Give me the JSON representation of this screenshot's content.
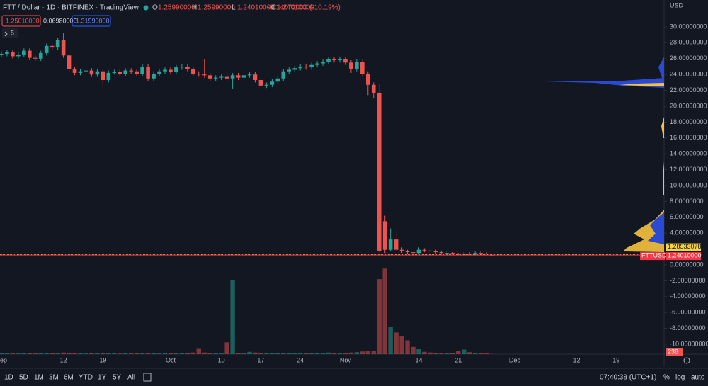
{
  "ui": {
    "title": "FTT / Dollar · 1D · BITFINEX · TradingView",
    "ohlc": [
      {
        "key": "O",
        "value": "1.25990000"
      },
      {
        "key": "H",
        "value": "1.25990000"
      },
      {
        "key": "L",
        "value": "1.24010000"
      },
      {
        "key": "C",
        "value": "1.24010000"
      }
    ],
    "change": "-0.14070000 (-10.19%)",
    "boxes": [
      "1.25010000",
      "0.06980000",
      "1.31990000"
    ],
    "indicator": "5",
    "currency": "USD",
    "ranges": [
      "1D",
      "5D",
      "1M",
      "3M",
      "6M",
      "YTD",
      "1Y",
      "5Y",
      "All"
    ],
    "clock": "07:40:38 (UTC+1)",
    "options": [
      "%",
      "log",
      "auto"
    ]
  },
  "chart_data": {
    "type": "candlestick",
    "up_color": "#26a69a",
    "down_color": "#ef5350",
    "grid": false,
    "categories": [
      "Sep",
      null,
      null,
      null,
      null,
      null,
      null,
      null,
      null,
      null,
      null,
      "12",
      null,
      null,
      null,
      null,
      null,
      null,
      "19",
      null,
      null,
      null,
      null,
      null,
      null,
      null,
      null,
      null,
      null,
      null,
      "Oct",
      null,
      null,
      null,
      null,
      null,
      null,
      null,
      null,
      "10",
      null,
      null,
      null,
      null,
      null,
      null,
      "17",
      null,
      null,
      null,
      null,
      null,
      null,
      "24",
      null,
      null,
      null,
      null,
      null,
      null,
      null,
      "Nov",
      null,
      null,
      null,
      null,
      null,
      null,
      null,
      null,
      null,
      null,
      null,
      null,
      "14",
      null,
      null,
      null,
      null,
      null,
      null,
      "21",
      null,
      null,
      null,
      null,
      null,
      null,
      null,
      null,
      null,
      "Dec",
      null,
      null,
      null,
      null,
      null,
      null,
      null,
      null,
      null,
      null,
      "12",
      null,
      null,
      null,
      null,
      null,
      null,
      "19",
      null,
      null,
      null,
      null,
      null,
      null,
      null,
      null
    ],
    "open": [
      26.5,
      26.6,
      26.8,
      26.3,
      26.5,
      27.0,
      26.1,
      26.0,
      26.7,
      27.6,
      27.4,
      28.3,
      26.4,
      24.7,
      24.2,
      24.4,
      24.5,
      24.0,
      24.4,
      23.3,
      24.2,
      24.3,
      24.1,
      24.5,
      24.4,
      24.1,
      25.0,
      23.5,
      24.1,
      24.4,
      24.6,
      24.3,
      24.9,
      25.0,
      24.7,
      24.1,
      24.0,
      23.9,
      23.5,
      23.6,
      23.7,
      23.5,
      23.9,
      23.6,
      23.9,
      24.0,
      23.3,
      22.6,
      22.7,
      23.1,
      23.5,
      24.4,
      24.6,
      24.8,
      25.0,
      24.9,
      25.2,
      25.4,
      25.6,
      25.9,
      25.8,
      25.9,
      25.5,
      24.7,
      25.6,
      24.1,
      22.7,
      21.7,
      5.5,
      1.9,
      3.2,
      1.9,
      1.7,
      1.6,
      1.5,
      1.9,
      1.8,
      1.7,
      1.6,
      1.5,
      1.5,
      1.4,
      1.3,
      1.4,
      1.3,
      1.5,
      1.4,
      1.2599,
      null,
      null,
      null,
      null,
      null,
      null,
      null,
      null,
      null,
      null,
      null,
      null,
      null,
      null,
      null,
      null,
      null,
      null,
      null,
      null,
      null,
      null,
      null,
      null,
      null,
      null,
      null,
      null,
      null,
      null
    ],
    "high": [
      26.9,
      27.1,
      27.1,
      26.8,
      27.3,
      27.3,
      26.4,
      27.0,
      27.9,
      27.9,
      28.6,
      29.2,
      26.6,
      25.0,
      24.7,
      24.8,
      24.8,
      24.7,
      24.7,
      24.5,
      24.6,
      24.6,
      24.8,
      24.8,
      24.7,
      25.3,
      25.3,
      24.4,
      24.7,
      24.9,
      24.9,
      25.2,
      25.3,
      25.3,
      25.0,
      24.4,
      25.9,
      24.2,
      23.9,
      24.0,
      24.0,
      24.2,
      24.2,
      24.2,
      24.3,
      24.3,
      23.6,
      23.0,
      23.4,
      23.8,
      24.7,
      24.9,
      25.1,
      25.3,
      25.3,
      25.5,
      25.7,
      25.9,
      26.2,
      26.2,
      26.2,
      26.2,
      25.8,
      25.9,
      25.9,
      24.4,
      23.0,
      22.8,
      6.2,
      4.6,
      4.3,
      2.2,
      1.9,
      1.8,
      2.2,
      2.1,
      2.0,
      1.9,
      1.8,
      1.7,
      1.6,
      1.5,
      1.6,
      1.6,
      1.7,
      1.7,
      1.6,
      1.2599,
      null,
      null,
      null,
      null,
      null,
      null,
      null,
      null,
      null,
      null,
      null,
      null,
      null,
      null,
      null,
      null,
      null,
      null,
      null,
      null,
      null,
      null,
      null,
      null,
      null,
      null,
      null,
      null,
      null,
      null
    ],
    "low": [
      26.2,
      26.3,
      26.0,
      26.0,
      26.2,
      25.8,
      25.7,
      25.7,
      26.4,
      27.1,
      27.1,
      26.1,
      24.4,
      23.9,
      23.9,
      24.1,
      23.7,
      23.7,
      22.6,
      23.0,
      24.0,
      23.8,
      23.8,
      24.1,
      23.8,
      23.8,
      23.2,
      23.2,
      23.8,
      24.1,
      24.0,
      24.0,
      24.6,
      24.4,
      23.8,
      23.7,
      23.6,
      23.2,
      23.2,
      23.3,
      23.2,
      22.2,
      23.3,
      23.3,
      23.6,
      23.0,
      22.3,
      22.3,
      22.4,
      22.8,
      23.2,
      24.1,
      24.3,
      24.5,
      24.6,
      24.6,
      24.9,
      25.1,
      25.3,
      25.5,
      25.5,
      25.2,
      24.2,
      24.4,
      23.8,
      21.4,
      21.0,
      1.5,
      1.5,
      1.7,
      1.7,
      1.5,
      1.4,
      1.3,
      1.4,
      1.6,
      1.5,
      1.4,
      1.3,
      1.3,
      1.2,
      1.2,
      1.2,
      1.2,
      1.2,
      1.3,
      1.3,
      1.2401,
      null,
      null,
      null,
      null,
      null,
      null,
      null,
      null,
      null,
      null,
      null,
      null,
      null,
      null,
      null,
      null,
      null,
      null,
      null,
      null,
      null,
      null,
      null,
      null,
      null,
      null,
      null,
      null,
      null,
      null
    ],
    "close": [
      26.6,
      26.8,
      26.3,
      26.5,
      27.0,
      26.1,
      26.0,
      26.7,
      27.6,
      27.4,
      28.3,
      26.4,
      24.7,
      24.2,
      24.4,
      24.5,
      24.0,
      24.4,
      23.3,
      24.2,
      24.3,
      24.1,
      24.5,
      24.4,
      24.1,
      25.0,
      23.5,
      24.1,
      24.4,
      24.6,
      24.3,
      24.9,
      25.0,
      24.7,
      24.1,
      24.0,
      23.9,
      23.5,
      23.6,
      23.7,
      23.5,
      23.9,
      23.6,
      23.9,
      24.0,
      23.3,
      22.6,
      22.7,
      23.1,
      23.5,
      24.4,
      24.6,
      24.8,
      25.0,
      24.9,
      25.2,
      25.4,
      25.6,
      25.9,
      25.8,
      25.9,
      25.5,
      24.7,
      25.6,
      24.1,
      22.7,
      21.7,
      1.7,
      1.9,
      3.2,
      1.9,
      1.7,
      1.6,
      1.5,
      1.9,
      1.8,
      1.7,
      1.6,
      1.5,
      1.5,
      1.4,
      1.3,
      1.4,
      1.3,
      1.5,
      1.4,
      1.38,
      1.2401,
      null,
      null,
      null,
      null,
      null,
      null,
      null,
      null,
      null,
      null,
      null,
      null,
      null,
      null,
      null,
      null,
      null,
      null,
      null,
      null,
      null,
      null,
      null,
      null,
      null,
      null,
      null,
      null,
      null,
      null
    ],
    "volume": [
      1500,
      1200,
      1000,
      900,
      1100,
      1300,
      1000,
      1200,
      1500,
      1400,
      2000,
      2500,
      1800,
      1500,
      1200,
      1000,
      1100,
      1300,
      1500,
      1200,
      1000,
      900,
      1100,
      1000,
      1200,
      1500,
      1400,
      1100,
      1000,
      1200,
      1300,
      1500,
      1400,
      1600,
      2500,
      8000,
      2500,
      1500,
      1300,
      2000,
      18000,
      112000,
      2000,
      1500,
      3500,
      2500,
      2000,
      1500,
      1300,
      2000,
      1500,
      1200,
      1300,
      1400,
      1200,
      1300,
      1400,
      1500,
      2500,
      2000,
      1800,
      1500,
      2500,
      3000,
      4000,
      4500,
      5000,
      114000,
      130000,
      42000,
      33000,
      27000,
      21000,
      11000,
      7500,
      3500,
      2500,
      2000,
      1500,
      1300,
      2000,
      5000,
      7000,
      3000,
      1500,
      1200,
      1000,
      238,
      null,
      null,
      null,
      null,
      null,
      null,
      null,
      null,
      null,
      null,
      null,
      null,
      null,
      null,
      null,
      null,
      null,
      null,
      null,
      null,
      null,
      null,
      null,
      null,
      null,
      null,
      null,
      null,
      null,
      null
    ],
    "vlim": [
      0,
      140000
    ],
    "ylim": [
      -11.25,
      33.39
    ],
    "yticks": [
      {
        "value": 30,
        "label": "30.00000000"
      },
      {
        "value": 28,
        "label": "28.00000000"
      },
      {
        "value": 26,
        "label": "26.00000000"
      },
      {
        "value": 24,
        "label": "24.00000000"
      },
      {
        "value": 22,
        "label": "22.00000000"
      },
      {
        "value": 20,
        "label": "20.00000000"
      },
      {
        "value": 18,
        "label": "18.00000000"
      },
      {
        "value": 16,
        "label": "16.00000000"
      },
      {
        "value": 14,
        "label": "14.00000000"
      },
      {
        "value": 12,
        "label": "12.00000000"
      },
      {
        "value": 10,
        "label": "10.00000000"
      },
      {
        "value": 8,
        "label": "8.00000000"
      },
      {
        "value": 6,
        "label": "6.00000000"
      },
      {
        "value": 4,
        "label": "4.00000000"
      },
      {
        "value": 0,
        "label": "0.00000000"
      },
      {
        "value": -2,
        "label": "-2.00000000"
      },
      {
        "value": -4,
        "label": "-4.00000000"
      },
      {
        "value": -6,
        "label": "-6.00000000"
      },
      {
        "value": -8,
        "label": "-8.00000000"
      },
      {
        "value": -10,
        "label": "-10.00000000"
      }
    ],
    "markers": [
      {
        "value": 1.28533078,
        "label": "1.28533078",
        "color": "#f7d33e"
      },
      {
        "value": 1.2401,
        "name": "FTTUSD",
        "label": "1.24010000",
        "color": "#f23645"
      }
    ]
  }
}
